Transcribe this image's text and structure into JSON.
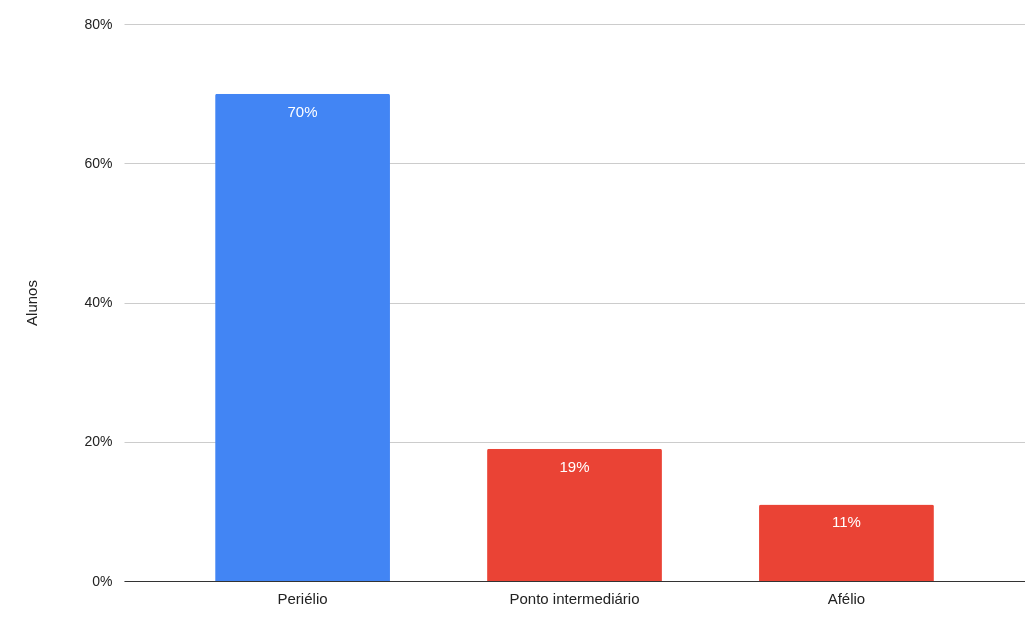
{
  "chart_data": {
    "type": "bar",
    "ylabel": "Alunos",
    "categories": [
      "Periélio",
      "Ponto intermediário",
      "Afélio"
    ],
    "values": [
      70,
      19,
      11
    ],
    "colors": [
      "#4285f4",
      "#ea4335",
      "#ea4335"
    ],
    "value_labels": [
      "70%",
      "19%",
      "11%"
    ],
    "ylim": [
      0,
      80
    ],
    "yticks": [
      {
        "value": 0,
        "label": "0%"
      },
      {
        "value": 20,
        "label": "20%"
      },
      {
        "value": 40,
        "label": "40%"
      },
      {
        "value": 60,
        "label": "60%"
      },
      {
        "value": 80,
        "label": "80%"
      }
    ],
    "grid": "y"
  }
}
